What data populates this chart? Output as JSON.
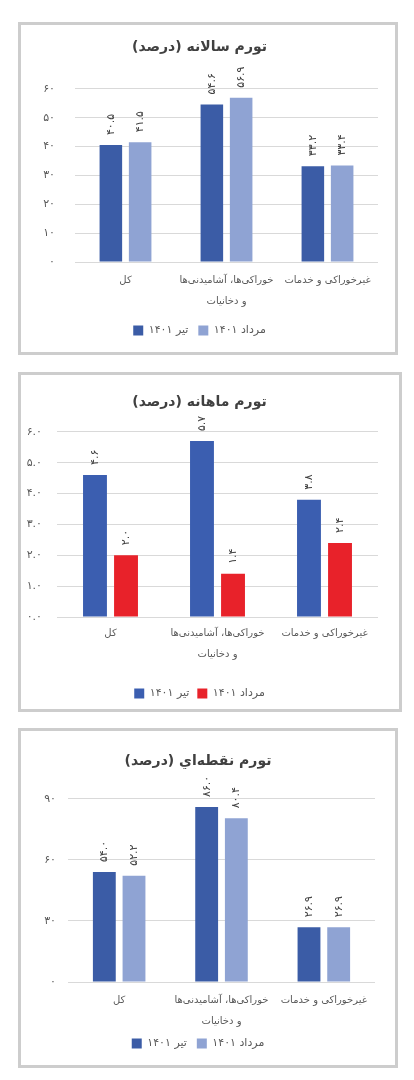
{
  "chart_data": [
    {
      "type": "bar",
      "title": "تورم سالانه (درصد)",
      "categories": [
        "کل",
        "خوراکی‌ها، آشامیدنی‌ها و دخانیات",
        "غیرخوراکی و خدمات"
      ],
      "series": [
        {
          "name": "تیر ۱۴۰۱",
          "color": "#3b5ca6",
          "values": [
            40.5,
            54.6,
            33.2
          ],
          "value_labels": [
            "۴۰.۵",
            "۵۴.۶",
            "۳۳.۲"
          ]
        },
        {
          "name": "مرداد ۱۴۰۱",
          "color": "#8fa3d3",
          "values": [
            41.5,
            56.9,
            33.4
          ],
          "value_labels": [
            "۴۱.۵",
            "۵۶.۹",
            "۳۳.۴"
          ]
        }
      ],
      "ylim": [
        0,
        60
      ],
      "yticks": [
        {
          "value": 0,
          "label": "۰"
        },
        {
          "value": 10,
          "label": "۱۰"
        },
        {
          "value": 20,
          "label": "۲۰"
        },
        {
          "value": 30,
          "label": "۳۰"
        },
        {
          "value": 40,
          "label": "۴۰"
        },
        {
          "value": 50,
          "label": "۵۰"
        },
        {
          "value": 60,
          "label": "۶۰"
        }
      ],
      "grid": "y",
      "legend": "bottom"
    },
    {
      "type": "bar",
      "title": "تورم ماهانه (درصد)",
      "categories": [
        "کل",
        "خوراکی‌ها، آشامیدنی‌ها و دخانیات",
        "غیرخوراکی و خدمات"
      ],
      "series": [
        {
          "name": "تیر ۱۴۰۱",
          "color": "#3b5eb0",
          "values": [
            4.6,
            5.7,
            3.8
          ],
          "value_labels": [
            "۴.۶",
            "۵.۷",
            "۳.۸"
          ]
        },
        {
          "name": "مرداد ۱۴۰۱",
          "color": "#e8222a",
          "values": [
            2.0,
            1.4,
            2.4
          ],
          "value_labels": [
            "۲.۰",
            "۱.۴",
            "۲.۴"
          ]
        }
      ],
      "ylim": [
        0,
        6
      ],
      "yticks": [
        {
          "value": 0,
          "label": "۰.۰"
        },
        {
          "value": 1,
          "label": "۱.۰"
        },
        {
          "value": 2,
          "label": "۲.۰"
        },
        {
          "value": 3,
          "label": "۳.۰"
        },
        {
          "value": 4,
          "label": "۴.۰"
        },
        {
          "value": 5,
          "label": "۵.۰"
        },
        {
          "value": 6,
          "label": "۶.۰"
        }
      ],
      "grid": "y",
      "legend": "bottom"
    },
    {
      "type": "bar",
      "title": "تورم نقطه‌اي (درصد)",
      "categories": [
        "کل",
        "خوراکی‌ها، آشامیدنی‌ها و دخانیات",
        "غیرخوراکی و خدمات"
      ],
      "series": [
        {
          "name": "تیر ۱۴۰۱",
          "color": "#3b5ca6",
          "values": [
            54.0,
            86.0,
            26.9
          ],
          "value_labels": [
            "۵۴.۰",
            "۸۶.۰",
            "۲۶.۹"
          ]
        },
        {
          "name": "مرداد ۱۴۰۱",
          "color": "#8fa3d3",
          "values": [
            52.2,
            80.4,
            26.9
          ],
          "value_labels": [
            "۵۲.۲",
            "۸۰.۴",
            "۲۶.۹"
          ]
        }
      ],
      "ylim": [
        0,
        90
      ],
      "yticks": [
        {
          "value": 0,
          "label": "۰"
        },
        {
          "value": 30,
          "label": "۳۰"
        },
        {
          "value": 60,
          "label": "۶۰"
        },
        {
          "value": 90,
          "label": "۹۰"
        }
      ],
      "grid": "y",
      "legend": "bottom"
    }
  ]
}
